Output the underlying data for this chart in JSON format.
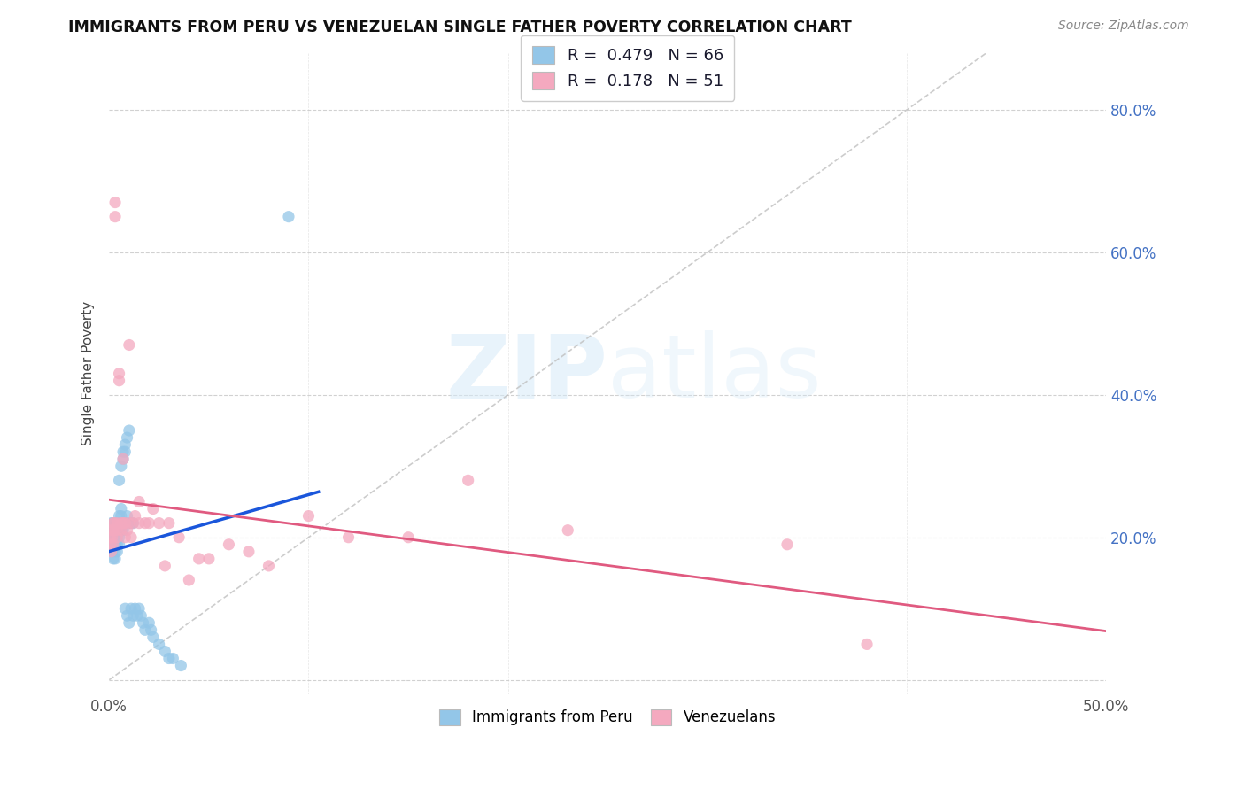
{
  "title": "IMMIGRANTS FROM PERU VS VENEZUELAN SINGLE FATHER POVERTY CORRELATION CHART",
  "source": "Source: ZipAtlas.com",
  "ylabel": "Single Father Poverty",
  "y_ticks": [
    0.0,
    0.2,
    0.4,
    0.6,
    0.8
  ],
  "y_tick_labels": [
    "",
    "20.0%",
    "40.0%",
    "60.0%",
    "80.0%"
  ],
  "x_range": [
    0.0,
    0.5
  ],
  "y_range": [
    -0.02,
    0.88
  ],
  "blue_color": "#93c6e8",
  "pink_color": "#f4a9bf",
  "blue_line_color": "#1a56db",
  "pink_line_color": "#e05a80",
  "diag_line_color": "#c0c0c0",
  "background_color": "#ffffff",
  "watermark_zip": "ZIP",
  "watermark_atlas": "atlas",
  "grid_color": "#cccccc",
  "peru_x": [
    0.0008,
    0.001,
    0.001,
    0.0012,
    0.0015,
    0.002,
    0.002,
    0.002,
    0.002,
    0.0025,
    0.003,
    0.003,
    0.003,
    0.003,
    0.003,
    0.003,
    0.0035,
    0.004,
    0.004,
    0.004,
    0.004,
    0.004,
    0.005,
    0.005,
    0.005,
    0.005,
    0.005,
    0.005,
    0.006,
    0.006,
    0.006,
    0.006,
    0.006,
    0.007,
    0.007,
    0.007,
    0.007,
    0.008,
    0.008,
    0.008,
    0.008,
    0.009,
    0.009,
    0.009,
    0.01,
    0.01,
    0.01,
    0.011,
    0.011,
    0.012,
    0.012,
    0.013,
    0.014,
    0.015,
    0.016,
    0.017,
    0.018,
    0.02,
    0.021,
    0.022,
    0.025,
    0.028,
    0.03,
    0.032,
    0.036,
    0.09
  ],
  "peru_y": [
    0.2,
    0.22,
    0.19,
    0.21,
    0.18,
    0.22,
    0.2,
    0.19,
    0.17,
    0.21,
    0.22,
    0.21,
    0.2,
    0.19,
    0.18,
    0.17,
    0.22,
    0.22,
    0.21,
    0.2,
    0.19,
    0.18,
    0.23,
    0.22,
    0.21,
    0.2,
    0.19,
    0.28,
    0.24,
    0.23,
    0.22,
    0.21,
    0.3,
    0.32,
    0.31,
    0.22,
    0.21,
    0.33,
    0.32,
    0.22,
    0.1,
    0.34,
    0.23,
    0.09,
    0.35,
    0.22,
    0.08,
    0.22,
    0.1,
    0.22,
    0.09,
    0.1,
    0.09,
    0.1,
    0.09,
    0.08,
    0.07,
    0.08,
    0.07,
    0.06,
    0.05,
    0.04,
    0.03,
    0.03,
    0.02,
    0.65
  ],
  "venezuela_x": [
    0.0005,
    0.0008,
    0.001,
    0.001,
    0.0015,
    0.002,
    0.002,
    0.002,
    0.0025,
    0.003,
    0.003,
    0.003,
    0.004,
    0.004,
    0.004,
    0.005,
    0.005,
    0.006,
    0.006,
    0.007,
    0.007,
    0.008,
    0.008,
    0.009,
    0.01,
    0.01,
    0.011,
    0.012,
    0.013,
    0.015,
    0.015,
    0.018,
    0.02,
    0.022,
    0.025,
    0.028,
    0.03,
    0.035,
    0.04,
    0.045,
    0.05,
    0.06,
    0.07,
    0.08,
    0.1,
    0.12,
    0.15,
    0.18,
    0.23,
    0.34,
    0.38
  ],
  "venezuela_y": [
    0.2,
    0.19,
    0.21,
    0.18,
    0.2,
    0.22,
    0.21,
    0.19,
    0.22,
    0.65,
    0.67,
    0.21,
    0.2,
    0.22,
    0.21,
    0.43,
    0.42,
    0.22,
    0.21,
    0.22,
    0.31,
    0.22,
    0.2,
    0.21,
    0.47,
    0.22,
    0.2,
    0.22,
    0.23,
    0.25,
    0.22,
    0.22,
    0.22,
    0.24,
    0.22,
    0.16,
    0.22,
    0.2,
    0.14,
    0.17,
    0.17,
    0.19,
    0.18,
    0.16,
    0.23,
    0.2,
    0.2,
    0.28,
    0.21,
    0.19,
    0.05
  ]
}
